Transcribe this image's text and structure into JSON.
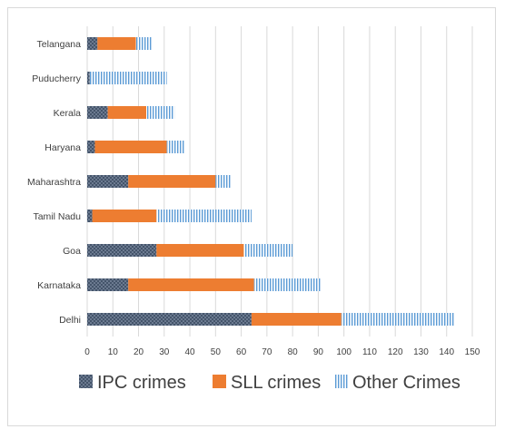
{
  "chart_data": {
    "type": "bar",
    "orientation": "horizontal",
    "stacked": true,
    "categories": [
      "Telangana",
      "Puducherry",
      "Kerala",
      "Haryana",
      "Maharashtra",
      "Tamil Nadu",
      "Goa",
      "Karnataka",
      "Delhi"
    ],
    "series": [
      {
        "name": "IPC crimes",
        "color": "#44546a",
        "pattern": "dots",
        "values": [
          4,
          1,
          8,
          3,
          16,
          2,
          27,
          16,
          64
        ]
      },
      {
        "name": "SLL crimes",
        "color": "#ed7d31",
        "pattern": "solid",
        "values": [
          15,
          0,
          15,
          28,
          34,
          25,
          34,
          49,
          35
        ]
      },
      {
        "name": "Other Crimes",
        "color": "#5b9bd5",
        "pattern": "vertical-lines",
        "values": [
          6,
          30,
          11,
          7,
          6,
          37,
          19,
          26,
          44
        ]
      }
    ],
    "xlim": [
      0,
      150
    ],
    "xticks": [
      0,
      10,
      20,
      30,
      40,
      50,
      60,
      70,
      80,
      90,
      100,
      110,
      120,
      130,
      140,
      150
    ],
    "grid": true,
    "legend_position": "bottom",
    "title": "",
    "xlabel": "",
    "ylabel": ""
  }
}
